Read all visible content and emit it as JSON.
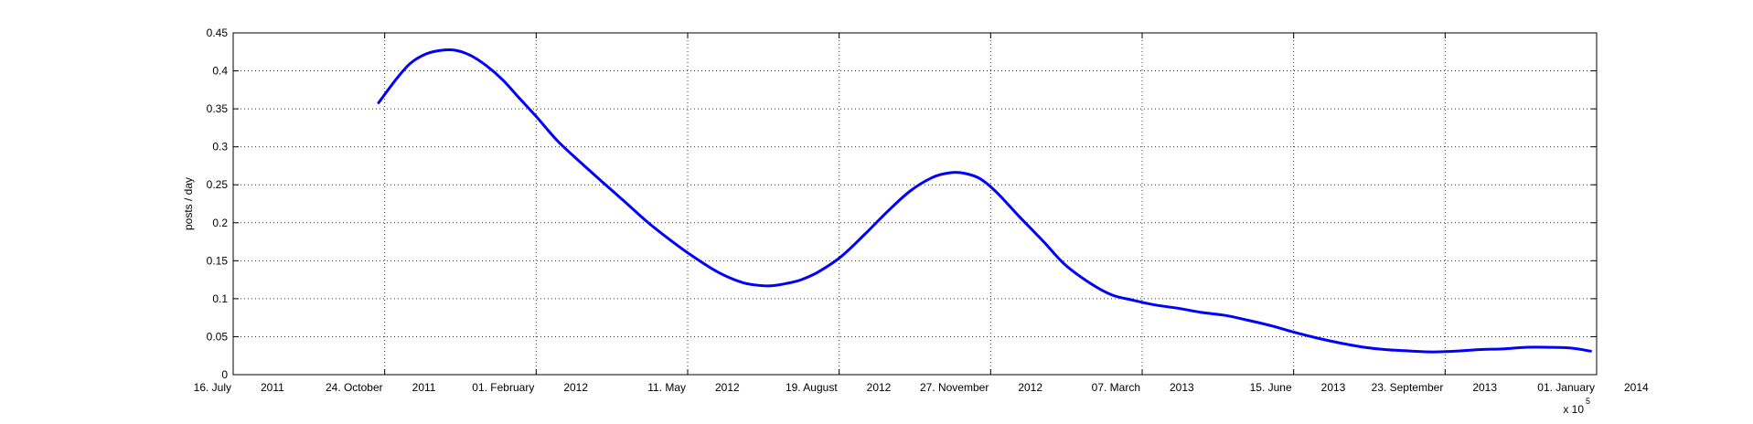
{
  "chart_data": {
    "type": "line",
    "ylabel": "posts / day",
    "xlabel": "",
    "ylim": [
      0,
      0.45
    ],
    "y_ticks": [
      0,
      0.05,
      0.1,
      0.15,
      0.2,
      0.25,
      0.3,
      0.35,
      0.4,
      0.45
    ],
    "y_tick_labels": [
      "0",
      "0.05",
      "0.1",
      "0.15",
      "0.2",
      "0.25",
      "0.3",
      "0.35",
      "0.4",
      "0.45"
    ],
    "xlim": [
      "2011-07-16",
      "2014-01-01"
    ],
    "x_ticks": [
      "2011-07-16",
      "2011-10-24",
      "2012-02-01",
      "2012-05-11",
      "2012-08-19",
      "2012-11-27",
      "2013-03-07",
      "2013-06-15",
      "2013-09-23",
      "2014-01-01"
    ],
    "x_tick_labels": [
      [
        "16. July",
        "2011"
      ],
      [
        "24. October",
        "2011"
      ],
      [
        "01. February",
        "2012"
      ],
      [
        "11. May",
        "2012"
      ],
      [
        "19. August",
        "2012"
      ],
      [
        "27. November",
        "2012"
      ],
      [
        "07. March",
        "2013"
      ],
      [
        "15. June",
        "2013"
      ],
      [
        "23. September",
        "2013"
      ],
      [
        "01. January",
        "2014"
      ]
    ],
    "x_exponent_label": "x 10",
    "x_exponent_power": "5",
    "grid": true,
    "line_color": "#0000ff",
    "series": [
      {
        "x": [
          "2011-10-20",
          "2011-11-01",
          "2011-11-10",
          "2011-11-20",
          "2011-11-30",
          "2011-12-10",
          "2011-12-20",
          "2011-12-30",
          "2012-01-10",
          "2012-01-20",
          "2012-02-01",
          "2012-02-15",
          "2012-03-01",
          "2012-03-15",
          "2012-04-01",
          "2012-04-15",
          "2012-05-01",
          "2012-05-15",
          "2012-05-31",
          "2012-06-15",
          "2012-06-25",
          "2012-07-05",
          "2012-07-15",
          "2012-07-25",
          "2012-08-05",
          "2012-08-20",
          "2012-09-05",
          "2012-09-20",
          "2012-10-05",
          "2012-10-20",
          "2012-11-01",
          "2012-11-10",
          "2012-11-20",
          "2012-12-01",
          "2012-12-15",
          "2013-01-01",
          "2013-01-15",
          "2013-02-01",
          "2013-02-15",
          "2013-03-01",
          "2013-03-15",
          "2013-04-01",
          "2013-04-15",
          "2013-05-01",
          "2013-05-15",
          "2013-06-01",
          "2013-06-15",
          "2013-07-01",
          "2013-07-15",
          "2013-08-01",
          "2013-08-15",
          "2013-09-01",
          "2013-09-15",
          "2013-09-30",
          "2013-10-15",
          "2013-11-01",
          "2013-11-15",
          "2013-12-01",
          "2013-12-15",
          "2013-12-28"
        ],
        "values": [
          0.358,
          0.39,
          0.41,
          0.422,
          0.427,
          0.427,
          0.42,
          0.407,
          0.388,
          0.366,
          0.34,
          0.308,
          0.28,
          0.255,
          0.225,
          0.2,
          0.175,
          0.155,
          0.135,
          0.122,
          0.118,
          0.117,
          0.12,
          0.125,
          0.135,
          0.155,
          0.185,
          0.215,
          0.242,
          0.26,
          0.266,
          0.265,
          0.258,
          0.24,
          0.21,
          0.175,
          0.145,
          0.12,
          0.105,
          0.098,
          0.092,
          0.087,
          0.082,
          0.078,
          0.072,
          0.064,
          0.056,
          0.048,
          0.042,
          0.036,
          0.033,
          0.031,
          0.03,
          0.031,
          0.033,
          0.034,
          0.036,
          0.036,
          0.035,
          0.031
        ]
      }
    ]
  }
}
